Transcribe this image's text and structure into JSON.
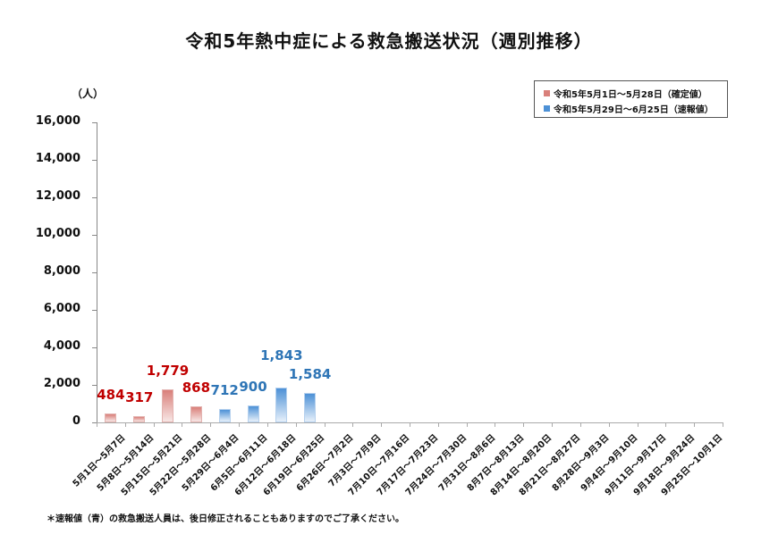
{
  "title": "令和5年熱中症による救急搬送状況（週別推移）",
  "unit_label": "（人）",
  "legend": [
    {
      "label": "令和5年5月1日～5月28日（確定値）",
      "color": "#d9807a"
    },
    {
      "label": "令和5年5月29日～6月25日（速報値）",
      "color": "#4d91d6"
    }
  ],
  "y_ticks": [
    "16,000",
    "14,000",
    "12,000",
    "10,000",
    "8,000",
    "6,000",
    "4,000",
    "2,000",
    "0"
  ],
  "footnote": "＊速報値（青）の救急搬送人員は、後日修正されることもありますのでご了承ください。",
  "colors": {
    "confirmed": "#c00000",
    "preliminary": "#2e75b6"
  },
  "chart_data": {
    "type": "bar",
    "title": "令和5年熱中症による救急搬送状況（週別推移）",
    "xlabel": "",
    "ylabel": "（人）",
    "ylim": [
      0,
      16000
    ],
    "grid": false,
    "legend_position": "top-right",
    "categories": [
      "5月1日～5月7日",
      "5月8日～5月14日",
      "5月15日～5月21日",
      "5月22日～5月28日",
      "5月29日～6月4日",
      "6月5日～6月11日",
      "6月12日～6月18日",
      "6月19日～6月25日",
      "6月26日～7月2日",
      "7月3日～7月9日",
      "7月10日～7月16日",
      "7月17日～7月23日",
      "7月24日～7月30日",
      "7月31日～8月6日",
      "8月7日～8月13日",
      "8月14日～8月20日",
      "8月21日～8月27日",
      "8月28日～9月3日",
      "9月4日～9月10日",
      "9月11日～9月17日",
      "9月18日～9月24日",
      "9月25日～10月1日"
    ],
    "series": [
      {
        "name": "令和5年5月1日～5月28日（確定値）",
        "values": [
          484,
          317,
          1779,
          868,
          null,
          null,
          null,
          null,
          null,
          null,
          null,
          null,
          null,
          null,
          null,
          null,
          null,
          null,
          null,
          null,
          null,
          null
        ]
      },
      {
        "name": "令和5年5月29日～6月25日（速報値）",
        "values": [
          null,
          null,
          null,
          null,
          712,
          900,
          1843,
          1584,
          null,
          null,
          null,
          null,
          null,
          null,
          null,
          null,
          null,
          null,
          null,
          null,
          null,
          null
        ]
      }
    ],
    "data_labels": [
      "484",
      "317",
      "1,779",
      "868",
      "712",
      "900",
      "1,843",
      "1,584"
    ]
  }
}
